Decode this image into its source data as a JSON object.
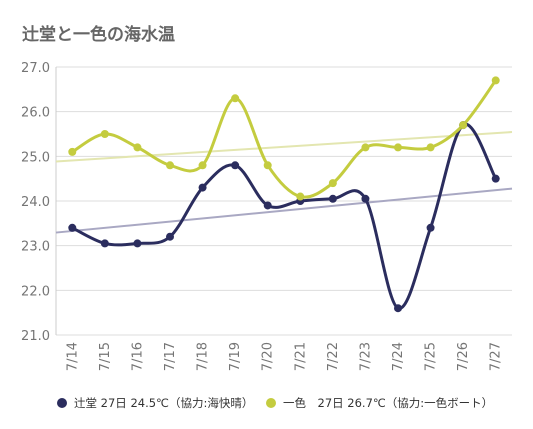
{
  "chart_data": {
    "type": "line",
    "title": "辻堂と一色の海水温",
    "x": [
      "7/14",
      "7/15",
      "7/16",
      "7/17",
      "7/18",
      "7/19",
      "7/20",
      "7/21",
      "7/22",
      "7/23",
      "7/24",
      "7/25",
      "7/26",
      "7/27"
    ],
    "ylim": [
      21.0,
      27.0
    ],
    "yticks": [
      "27.0",
      "26.0",
      "25.0",
      "24.0",
      "23.0",
      "22.0",
      "21.0"
    ],
    "grid": true,
    "legend_position": "bottom",
    "trendlines": true,
    "series": [
      {
        "name": "辻堂 27日 24.5℃（協力:海快晴）",
        "color": "#2b2d5e",
        "trend_color": "#a9a8c3",
        "values": [
          23.4,
          23.05,
          23.05,
          23.2,
          24.3,
          24.8,
          23.9,
          24.0,
          24.05,
          24.05,
          21.6,
          23.4,
          25.7,
          24.5
        ]
      },
      {
        "name": "一色　27日 26.7℃（協力:一色ボート）",
        "color": "#c4cc3f",
        "trend_color": "#e3e6b0",
        "values": [
          25.1,
          25.5,
          25.2,
          24.8,
          24.8,
          26.3,
          24.8,
          24.1,
          24.4,
          25.2,
          25.2,
          25.2,
          25.7,
          26.7
        ]
      }
    ]
  }
}
